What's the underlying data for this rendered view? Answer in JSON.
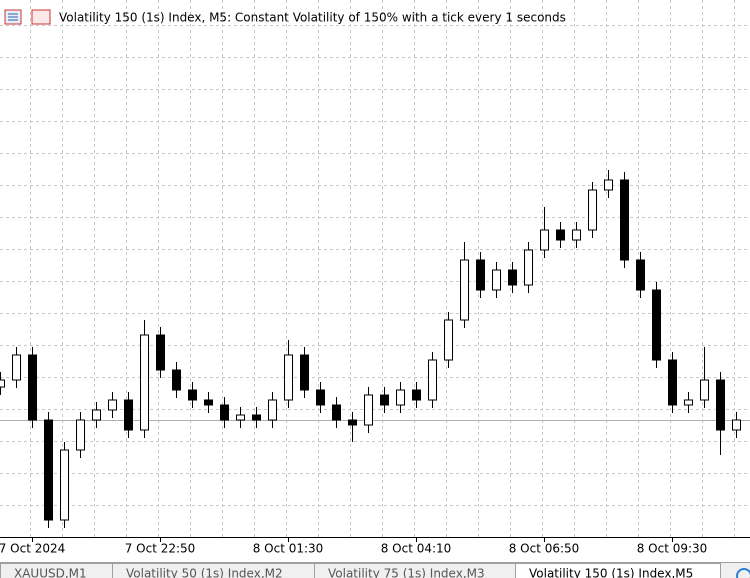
{
  "chart_data": {
    "type": "candlestick",
    "title": "Volatility 150 (1s) Index, M5:  Constant Volatility of 150% with a tick every 1 seconds",
    "categories": [
      null,
      null,
      "7 Oct 2024",
      null,
      null,
      null,
      null,
      null,
      null,
      null,
      "7 Oct 22:50",
      null,
      null,
      null,
      null,
      null,
      null,
      null,
      "8 Oct 01:30",
      null,
      null,
      null,
      null,
      null,
      null,
      null,
      "8 Oct 04:10",
      null,
      null,
      null,
      null,
      null,
      null,
      null,
      "8 Oct 06:50",
      null,
      null,
      null,
      null,
      null,
      null,
      null,
      "8 Oct 09:30",
      null,
      null,
      null,
      null
    ],
    "open": [
      150,
      157,
      182,
      117,
      17,
      87,
      117,
      127,
      137,
      107,
      202,
      167,
      147,
      137,
      132,
      117,
      122,
      117,
      137,
      182,
      147,
      132,
      117,
      112,
      142,
      132,
      147,
      137,
      177,
      217,
      277,
      247,
      267,
      252,
      287,
      307,
      297,
      307,
      347,
      357,
      277,
      247,
      177,
      132,
      137,
      157,
      107
    ],
    "high": [
      165,
      190,
      190,
      125,
      95,
      125,
      135,
      145,
      145,
      217,
      210,
      175,
      155,
      145,
      140,
      130,
      130,
      145,
      197,
      190,
      155,
      140,
      125,
      150,
      150,
      155,
      155,
      185,
      225,
      295,
      285,
      275,
      275,
      295,
      330,
      315,
      315,
      355,
      367,
      365,
      285,
      255,
      185,
      145,
      190,
      165,
      125
    ],
    "low": [
      142,
      149,
      109,
      9,
      9,
      79,
      109,
      119,
      99,
      99,
      159,
      139,
      129,
      124,
      109,
      109,
      109,
      109,
      129,
      139,
      124,
      109,
      95,
      104,
      124,
      124,
      129,
      129,
      169,
      209,
      239,
      239,
      244,
      244,
      279,
      289,
      289,
      299,
      339,
      269,
      239,
      169,
      124,
      124,
      129,
      82,
      99
    ],
    "close": [
      157,
      182,
      117,
      17,
      87,
      117,
      127,
      137,
      107,
      202,
      167,
      147,
      137,
      132,
      117,
      122,
      117,
      137,
      182,
      147,
      132,
      117,
      112,
      142,
      132,
      147,
      137,
      177,
      217,
      277,
      247,
      267,
      252,
      287,
      307,
      297,
      307,
      347,
      357,
      277,
      247,
      177,
      132,
      137,
      157,
      107,
      117
    ],
    "ylim": [
      0,
      537
    ],
    "grid": true,
    "up_color": "#ffffff",
    "down_color": "#000000"
  },
  "tabs": [
    "XAUUSD,M1",
    "Volatility 50 (1s) Index,M2",
    "Volatility 75 (1s) Index,M3",
    "Volatility 150 (1s) Index,M5"
  ]
}
